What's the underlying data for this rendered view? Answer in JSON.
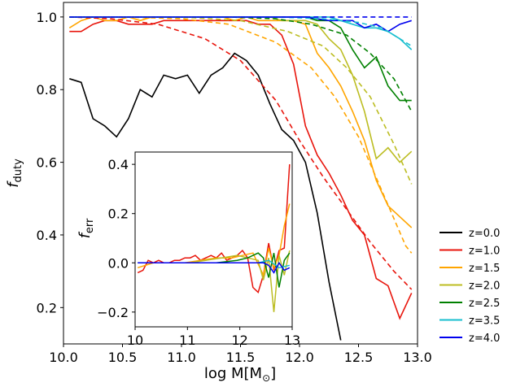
{
  "chart_data": [
    {
      "type": "line",
      "xlabel": "log M[M",
      "xlabel_sub": "⊙",
      "xlabel_close": "]",
      "ylabel": "f",
      "ylabel_sub": "duty",
      "xlim": [
        10.0,
        13.0
      ],
      "ylim": [
        0.1,
        1.04
      ],
      "xticks": [
        "10.0",
        "10.5",
        "11.0",
        "11.5",
        "12.0",
        "12.5",
        "13.0"
      ],
      "yticks": [
        "0.2",
        "0.4",
        "0.6",
        "0.8",
        "1.0"
      ],
      "legend_position": "outside-right",
      "series": [
        {
          "name": "z=0.0",
          "color": "#000000",
          "x": [
            10.05,
            10.15,
            10.25,
            10.35,
            10.45,
            10.55,
            10.65,
            10.75,
            10.85,
            10.95,
            11.05,
            11.15,
            11.25,
            11.35,
            11.45,
            11.55,
            11.65,
            11.75,
            11.85,
            11.95,
            12.05,
            12.15,
            12.25,
            12.35
          ],
          "y": [
            0.83,
            0.82,
            0.72,
            0.7,
            0.67,
            0.72,
            0.8,
            0.78,
            0.84,
            0.83,
            0.84,
            0.79,
            0.84,
            0.86,
            0.9,
            0.88,
            0.84,
            0.76,
            0.69,
            0.66,
            0.6,
            0.46,
            0.27,
            0.11
          ]
        },
        {
          "name": "z=1.0",
          "color": "#e8150c",
          "x": [
            10.05,
            10.15,
            10.25,
            10.35,
            10.45,
            10.55,
            10.65,
            10.75,
            10.85,
            10.95,
            11.05,
            11.15,
            11.25,
            11.35,
            11.45,
            11.55,
            11.65,
            11.75,
            11.85,
            11.95,
            12.05,
            12.15,
            12.25,
            12.35,
            12.45,
            12.55,
            12.65,
            12.75,
            12.85,
            12.95
          ],
          "y": [
            0.96,
            0.96,
            0.98,
            0.99,
            0.99,
            0.98,
            0.98,
            0.98,
            0.99,
            0.99,
            0.99,
            0.99,
            0.99,
            0.99,
            0.99,
            0.99,
            0.98,
            0.98,
            0.95,
            0.87,
            0.7,
            0.62,
            0.57,
            0.51,
            0.44,
            0.4,
            0.28,
            0.26,
            0.17,
            0.24
          ]
        },
        {
          "name": "z=1.5",
          "color": "#ffa500",
          "x": [
            10.05,
            10.15,
            10.25,
            10.35,
            10.45,
            10.55,
            10.65,
            10.75,
            10.85,
            10.95,
            11.05,
            11.15,
            11.25,
            11.35,
            11.45,
            11.55,
            11.65,
            11.75,
            11.85,
            11.95,
            12.05,
            12.15,
            12.25,
            12.35,
            12.45,
            12.55,
            12.65,
            12.75,
            12.85,
            12.95
          ],
          "y": [
            0.97,
            0.99,
            1.0,
            0.99,
            0.99,
            1.0,
            0.99,
            1.0,
            1.0,
            1.0,
            1.0,
            1.0,
            1.0,
            1.0,
            0.99,
            1.0,
            0.99,
            0.99,
            0.99,
            0.99,
            0.98,
            0.9,
            0.86,
            0.81,
            0.74,
            0.66,
            0.55,
            0.48,
            0.45,
            0.42
          ]
        },
        {
          "name": "z=2.0",
          "color": "#bcbd22",
          "x": [
            10.05,
            10.15,
            10.25,
            10.35,
            10.45,
            10.55,
            10.65,
            10.75,
            10.85,
            10.95,
            11.05,
            11.15,
            11.25,
            11.35,
            11.45,
            11.55,
            11.65,
            11.75,
            11.85,
            11.95,
            12.05,
            12.15,
            12.25,
            12.35,
            12.45,
            12.55,
            12.65,
            12.75,
            12.85,
            12.95
          ],
          "y": [
            1.0,
            1.0,
            1.0,
            1.0,
            1.0,
            1.0,
            1.0,
            1.0,
            1.0,
            1.0,
            1.0,
            1.0,
            1.0,
            1.0,
            1.0,
            1.0,
            1.0,
            1.0,
            0.99,
            0.99,
            0.99,
            0.98,
            0.94,
            0.91,
            0.84,
            0.74,
            0.61,
            0.64,
            0.6,
            0.63
          ]
        },
        {
          "name": "z=2.5",
          "color": "#008000",
          "x": [
            10.05,
            10.15,
            10.25,
            10.35,
            10.45,
            10.55,
            10.65,
            10.75,
            10.85,
            10.95,
            11.05,
            11.15,
            11.25,
            11.35,
            11.45,
            11.55,
            11.65,
            11.75,
            11.85,
            11.95,
            12.05,
            12.15,
            12.25,
            12.35,
            12.45,
            12.55,
            12.65,
            12.75,
            12.85,
            12.95
          ],
          "y": [
            1.0,
            1.0,
            1.0,
            1.0,
            1.0,
            1.0,
            1.0,
            1.0,
            1.0,
            1.0,
            1.0,
            1.0,
            1.0,
            1.0,
            1.0,
            1.0,
            1.0,
            1.0,
            1.0,
            1.0,
            1.0,
            0.99,
            0.99,
            0.97,
            0.91,
            0.86,
            0.89,
            0.81,
            0.77,
            0.77
          ]
        },
        {
          "name": "z=3.5",
          "color": "#17becf",
          "x": [
            10.05,
            10.25,
            10.45,
            10.65,
            10.85,
            11.05,
            11.25,
            11.45,
            11.65,
            11.85,
            12.05,
            12.25,
            12.35,
            12.45,
            12.55,
            12.65,
            12.75,
            12.85,
            12.95
          ],
          "y": [
            1.0,
            1.0,
            1.0,
            1.0,
            1.0,
            1.0,
            1.0,
            1.0,
            1.0,
            1.0,
            1.0,
            1.0,
            0.99,
            0.98,
            0.97,
            0.97,
            0.96,
            0.94,
            0.91
          ]
        },
        {
          "name": "z=4.0",
          "color": "#0000ee",
          "x": [
            10.05,
            10.25,
            10.45,
            10.65,
            10.85,
            11.05,
            11.25,
            11.45,
            11.65,
            11.85,
            12.05,
            12.25,
            12.45,
            12.55,
            12.65,
            12.75,
            12.85,
            12.95
          ],
          "y": [
            1.0,
            1.0,
            1.0,
            1.0,
            1.0,
            1.0,
            1.0,
            1.0,
            1.0,
            1.0,
            1.0,
            0.99,
            0.99,
            0.97,
            0.98,
            0.96,
            0.98,
            0.99
          ]
        }
      ],
      "model_curves": [
        {
          "color": "#e8150c",
          "x": [
            10.05,
            10.4,
            10.8,
            11.2,
            11.5,
            11.8,
            12.0,
            12.2,
            12.4,
            12.6,
            12.8,
            12.95
          ],
          "y": [
            1.0,
            0.995,
            0.98,
            0.94,
            0.88,
            0.77,
            0.66,
            0.56,
            0.47,
            0.38,
            0.3,
            0.25
          ]
        },
        {
          "color": "#ffa500",
          "x": [
            10.05,
            10.5,
            11.0,
            11.4,
            11.8,
            12.1,
            12.3,
            12.5,
            12.7,
            12.9,
            12.95
          ],
          "y": [
            1.0,
            1.0,
            0.995,
            0.98,
            0.93,
            0.86,
            0.78,
            0.67,
            0.52,
            0.37,
            0.35
          ]
        },
        {
          "color": "#bcbd22",
          "x": [
            10.05,
            10.6,
            11.1,
            11.5,
            11.9,
            12.2,
            12.4,
            12.6,
            12.8,
            12.95
          ],
          "y": [
            1.0,
            1.0,
            0.998,
            0.99,
            0.96,
            0.92,
            0.86,
            0.78,
            0.65,
            0.54
          ]
        },
        {
          "color": "#008000",
          "x": [
            10.05,
            10.8,
            11.4,
            11.8,
            12.1,
            12.4,
            12.6,
            12.8,
            12.95
          ],
          "y": [
            1.0,
            1.0,
            1.0,
            0.995,
            0.98,
            0.95,
            0.9,
            0.83,
            0.74
          ]
        },
        {
          "color": "#17becf",
          "x": [
            10.05,
            11.0,
            11.8,
            12.2,
            12.5,
            12.7,
            12.95
          ],
          "y": [
            1.0,
            1.0,
            1.0,
            0.995,
            0.985,
            0.97,
            0.92
          ]
        },
        {
          "color": "#0000ee",
          "x": [
            10.05,
            12.95
          ],
          "y": [
            1.0,
            1.0
          ]
        }
      ]
    },
    {
      "type": "line",
      "ylabel": "f",
      "ylabel_sub": "err",
      "xlim": [
        10.0,
        13.0
      ],
      "ylim": [
        -0.26,
        0.45
      ],
      "xticks": [
        "10",
        "11",
        "12",
        "13"
      ],
      "yticks": [
        "−0.2",
        "0.0",
        "0.2",
        "0.4"
      ],
      "series": [
        {
          "name": "z=1.0",
          "color": "#e8150c",
          "x": [
            10.05,
            10.15,
            10.25,
            10.35,
            10.45,
            10.55,
            10.65,
            10.75,
            10.85,
            10.95,
            11.05,
            11.15,
            11.25,
            11.35,
            11.45,
            11.55,
            11.65,
            11.75,
            11.85,
            11.95,
            12.05,
            12.15,
            12.25,
            12.35,
            12.45,
            12.55,
            12.65,
            12.75,
            12.85,
            12.95
          ],
          "y": [
            -0.04,
            -0.03,
            0.01,
            0.0,
            0.01,
            0.0,
            0.0,
            0.01,
            0.01,
            0.02,
            0.02,
            0.03,
            0.01,
            0.02,
            0.03,
            0.02,
            0.04,
            0.01,
            0.02,
            0.03,
            0.05,
            0.02,
            -0.1,
            -0.12,
            -0.05,
            0.08,
            -0.03,
            0.05,
            0.06,
            0.4
          ]
        },
        {
          "name": "z=1.5",
          "color": "#ffa500",
          "x": [
            10.05,
            10.35,
            10.65,
            10.95,
            11.25,
            11.55,
            11.85,
            12.05,
            12.25,
            12.45,
            12.55,
            12.65,
            12.75,
            12.85,
            12.95
          ],
          "y": [
            -0.02,
            0.0,
            0.0,
            0.0,
            0.01,
            0.02,
            0.02,
            0.03,
            0.04,
            -0.05,
            0.06,
            -0.02,
            0.03,
            0.15,
            0.24
          ]
        },
        {
          "name": "z=2.0",
          "color": "#bcbd22",
          "x": [
            10.05,
            10.55,
            11.05,
            11.35,
            11.65,
            11.95,
            12.15,
            12.35,
            12.45,
            12.55,
            12.65,
            12.75,
            12.85,
            12.95
          ],
          "y": [
            0.0,
            0.0,
            0.0,
            0.01,
            0.02,
            0.03,
            0.02,
            0.01,
            -0.07,
            0.02,
            -0.2,
            0.03,
            -0.05,
            0.05
          ]
        },
        {
          "name": "z=2.5",
          "color": "#008000",
          "x": [
            10.05,
            10.55,
            11.05,
            11.55,
            11.95,
            12.15,
            12.35,
            12.45,
            12.55,
            12.65,
            12.75,
            12.85,
            12.95
          ],
          "y": [
            0.0,
            0.0,
            0.0,
            0.0,
            0.01,
            0.02,
            0.04,
            0.02,
            -0.06,
            0.04,
            -0.1,
            0.01,
            0.04
          ]
        },
        {
          "name": "z=3.5",
          "color": "#17becf",
          "x": [
            10.05,
            10.55,
            11.05,
            11.55,
            12.05,
            12.35,
            12.55,
            12.75,
            12.95
          ],
          "y": [
            0.0,
            0.0,
            0.0,
            0.0,
            0.0,
            0.0,
            0.01,
            -0.02,
            -0.01
          ]
        },
        {
          "name": "z=4.0",
          "color": "#0000ee",
          "x": [
            10.05,
            10.55,
            11.05,
            11.55,
            12.05,
            12.45,
            12.55,
            12.65,
            12.75,
            12.85,
            12.95
          ],
          "y": [
            0.0,
            0.0,
            0.0,
            0.0,
            0.0,
            0.0,
            -0.01,
            -0.04,
            0.0,
            -0.03,
            -0.02
          ]
        }
      ]
    }
  ]
}
